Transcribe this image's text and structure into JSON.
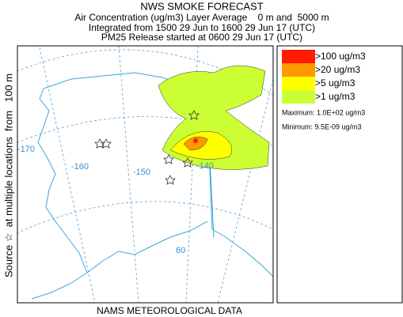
{
  "header": {
    "title": "NWS SMOKE FORECAST",
    "lines": [
      "Air Concentration (ug/m3) Layer Average    0 m and  5000 m",
      "Integrated from 1500 29 Jun to 1600 29 Jun 17 (UTC)",
      "PM25 Release started at 0600 29 Jun 17 (UTC)"
    ]
  },
  "side_label": "Source ☆  at multiple locations  from   100 m",
  "footer": "NAMS METEOROLOGICAL DATA",
  "legend": {
    "items": [
      {
        "label": ">100 ug/m3",
        "color": "#ff1a00"
      },
      {
        "label": ">20 ug/m3",
        "color": "#ff9900"
      },
      {
        "label": ">5 ug/m3",
        "color": "#ffff00"
      },
      {
        "label": ">1 ug/m3",
        "color": "#ccff33"
      }
    ],
    "maximum": "Maximum: 1.0E+02 ug/m3",
    "minimum": "Minimum: 9.5E-09 ug/m3"
  },
  "map": {
    "grid_labels": [
      "-170",
      "-160",
      "-150",
      "-140",
      "60"
    ]
  }
}
